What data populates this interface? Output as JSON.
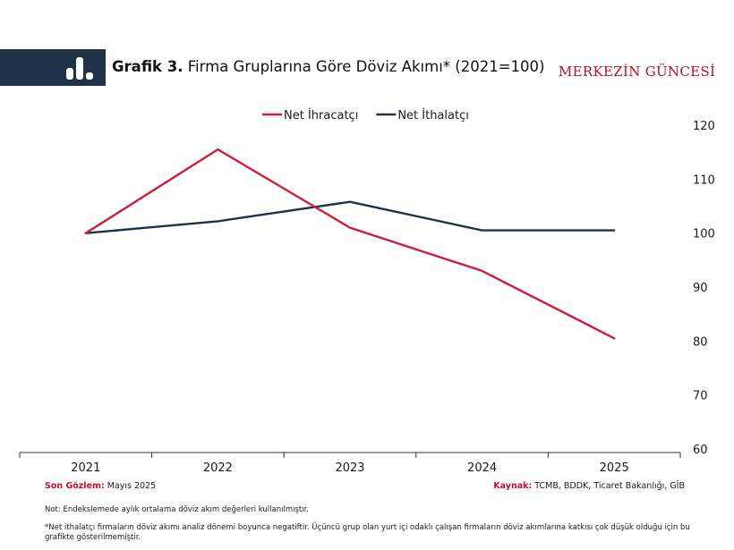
{
  "header": {
    "title_bold": "Grafik 3.",
    "title_rest": " Firma Gruplarına Göre Döviz Akımı* (2021=100)",
    "brand": "MERKEZİN GÜNCESİ",
    "icon": "bar-chart-icon",
    "bar_color": "#1e3347"
  },
  "chart_data": {
    "type": "line",
    "x": [
      "2021",
      "2022",
      "2023",
      "2024",
      "2025"
    ],
    "series": [
      {
        "name": "Net İhracatçı",
        "color": "#d01c3c",
        "values": [
          100,
          115.5,
          101,
          93,
          80.5
        ]
      },
      {
        "name": "Net İthalatçı",
        "color": "#1e3347",
        "values": [
          100,
          102.2,
          105.8,
          100.5,
          100.5
        ]
      }
    ],
    "y_ticks": [
      "120",
      "110",
      "100",
      "90",
      "80",
      "70",
      "60"
    ],
    "ylim": [
      60,
      120
    ],
    "y_axis_side": "right",
    "grid": false,
    "legend_position": "top-center"
  },
  "footer": {
    "left_label": "Son Gözlem:",
    "left_value": " Mayıs 2025",
    "right_label": "Kaynak:",
    "right_value": " TCMB, BDDK, Ticaret Bakanlığı, GİB",
    "note1": "Not: Endekslemede aylık ortalama döviz akım değerleri kullanılmıştır.",
    "note2": "*Net ithalatçı firmaların döviz akımı analiz dönemi boyunca negatiftir. Üçüncü grup olan yurt içi odaklı çalışan firmaların döviz akımlarına katkısı çok düşük olduğu için bu grafikte gösterilmemiştir."
  }
}
